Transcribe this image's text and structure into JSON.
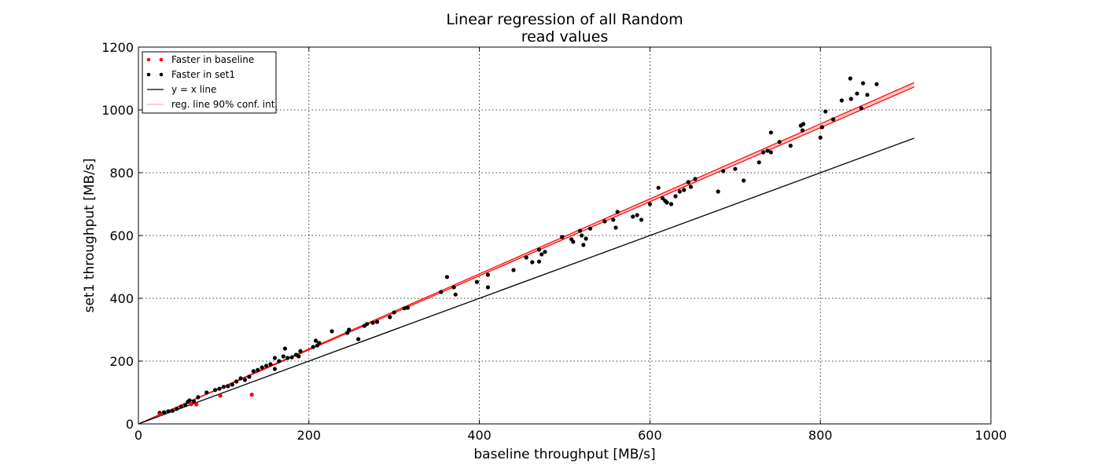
{
  "chart_data": {
    "type": "scatter",
    "title_lines": [
      "Linear regression of all Random",
      "read values"
    ],
    "xlabel": "baseline throughput [MB/s]",
    "ylabel": "set1 throughput [MB/s]",
    "xlim": [
      0,
      1000
    ],
    "ylim": [
      0,
      1200
    ],
    "xticks": [
      0,
      200,
      400,
      600,
      800,
      1000
    ],
    "yticks": [
      0,
      200,
      400,
      600,
      800,
      1000,
      1200
    ],
    "grid": true,
    "legend_position": "top-left",
    "colors": {
      "baseline_points": "#ff0000",
      "set1_points": "#000000",
      "yx_line": "#000000",
      "regression_line": "#ff0000",
      "confidence_band": "#ffb0b0"
    },
    "series": [
      {
        "name": "Faster in baseline",
        "kind": "points",
        "color": "#ff0000",
        "points": [
          [
            25,
            30
          ],
          [
            62,
            63
          ],
          [
            68,
            62
          ],
          [
            96,
            90
          ],
          [
            133,
            93
          ]
        ]
      },
      {
        "name": "Faster in set1",
        "kind": "points",
        "color": "#000000",
        "points": [
          [
            25,
            35
          ],
          [
            30,
            37
          ],
          [
            35,
            40
          ],
          [
            40,
            42
          ],
          [
            45,
            48
          ],
          [
            50,
            55
          ],
          [
            55,
            60
          ],
          [
            58,
            70
          ],
          [
            60,
            75
          ],
          [
            65,
            72
          ],
          [
            70,
            85
          ],
          [
            80,
            100
          ],
          [
            90,
            108
          ],
          [
            95,
            112
          ],
          [
            100,
            118
          ],
          [
            105,
            120
          ],
          [
            110,
            125
          ],
          [
            115,
            135
          ],
          [
            120,
            145
          ],
          [
            125,
            140
          ],
          [
            130,
            150
          ],
          [
            135,
            168
          ],
          [
            140,
            172
          ],
          [
            145,
            180
          ],
          [
            150,
            185
          ],
          [
            155,
            190
          ],
          [
            160,
            210
          ],
          [
            160,
            175
          ],
          [
            165,
            200
          ],
          [
            170,
            215
          ],
          [
            172,
            240
          ],
          [
            175,
            210
          ],
          [
            180,
            212
          ],
          [
            185,
            220
          ],
          [
            188,
            215
          ],
          [
            190,
            232
          ],
          [
            205,
            245
          ],
          [
            208,
            265
          ],
          [
            210,
            250
          ],
          [
            212,
            258
          ],
          [
            227,
            295
          ],
          [
            245,
            290
          ],
          [
            247,
            300
          ],
          [
            258,
            270
          ],
          [
            265,
            312
          ],
          [
            268,
            318
          ],
          [
            275,
            322
          ],
          [
            280,
            325
          ],
          [
            295,
            340
          ],
          [
            300,
            355
          ],
          [
            312,
            368
          ],
          [
            316,
            370
          ],
          [
            355,
            420
          ],
          [
            362,
            468
          ],
          [
            370,
            435
          ],
          [
            372,
            412
          ],
          [
            397,
            452
          ],
          [
            410,
            475
          ],
          [
            410,
            435
          ],
          [
            440,
            490
          ],
          [
            455,
            530
          ],
          [
            462,
            515
          ],
          [
            470,
            555
          ],
          [
            470,
            517
          ],
          [
            473,
            540
          ],
          [
            477,
            548
          ],
          [
            497,
            595
          ],
          [
            508,
            588
          ],
          [
            510,
            580
          ],
          [
            518,
            615
          ],
          [
            520,
            600
          ],
          [
            522,
            570
          ],
          [
            525,
            590
          ],
          [
            530,
            622
          ],
          [
            547,
            645
          ],
          [
            557,
            650
          ],
          [
            560,
            625
          ],
          [
            562,
            675
          ],
          [
            580,
            660
          ],
          [
            585,
            665
          ],
          [
            590,
            650
          ],
          [
            600,
            700
          ],
          [
            610,
            752
          ],
          [
            615,
            718
          ],
          [
            618,
            710
          ],
          [
            620,
            705
          ],
          [
            625,
            700
          ],
          [
            630,
            725
          ],
          [
            635,
            740
          ],
          [
            640,
            745
          ],
          [
            645,
            770
          ],
          [
            648,
            755
          ],
          [
            653,
            780
          ],
          [
            680,
            740
          ],
          [
            686,
            805
          ],
          [
            700,
            812
          ],
          [
            710,
            775
          ],
          [
            728,
            833
          ],
          [
            733,
            865
          ],
          [
            738,
            870
          ],
          [
            742,
            928
          ],
          [
            742,
            865
          ],
          [
            752,
            898
          ],
          [
            765,
            886
          ],
          [
            777,
            950
          ],
          [
            780,
            955
          ],
          [
            779,
            935
          ],
          [
            800,
            912
          ],
          [
            802,
            945
          ],
          [
            806,
            995
          ],
          [
            815,
            970
          ],
          [
            825,
            1030
          ],
          [
            835,
            1100
          ],
          [
            836,
            1035
          ],
          [
            843,
            1052
          ],
          [
            848,
            1005
          ],
          [
            850,
            1085
          ],
          [
            855,
            1048
          ],
          [
            866,
            1082
          ]
        ]
      },
      {
        "name": "y = x line",
        "kind": "line",
        "color": "#000000",
        "points": [
          [
            0,
            0
          ],
          [
            910,
            910
          ]
        ]
      },
      {
        "name": "reg. line 90% conf. int.",
        "kind": "band",
        "color": "#ffb0b0",
        "points": [
          [
            0,
            0
          ],
          [
            910,
            1080
          ]
        ],
        "band_halfwidth": 7
      }
    ]
  }
}
